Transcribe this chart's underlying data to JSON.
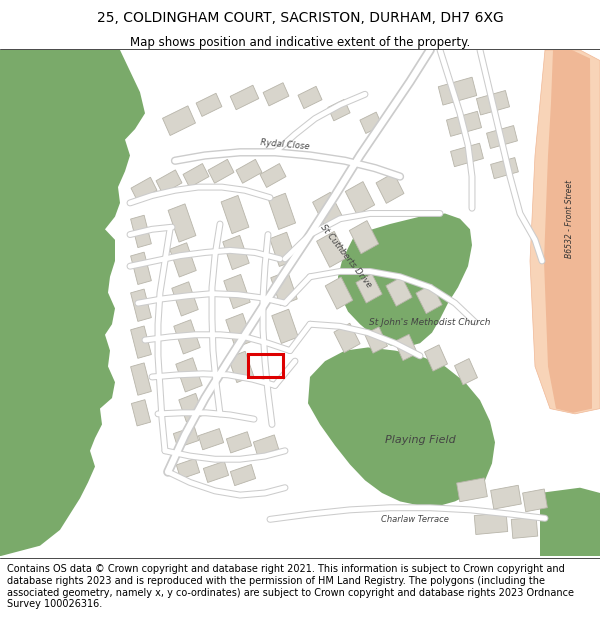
{
  "title_line1": "25, COLDINGHAM COURT, SACRISTON, DURHAM, DH7 6XG",
  "title_line2": "Map shows position and indicative extent of the property.",
  "footer_text": "Contains OS data © Crown copyright and database right 2021. This information is subject to Crown copyright and database rights 2023 and is reproduced with the permission of HM Land Registry. The polygons (including the associated geometry, namely x, y co-ordinates) are subject to Crown copyright and database rights 2023 Ordnance Survey 100026316.",
  "map_bg": "#f5f4f0",
  "white_bg": "#ffffff",
  "green_color": "#7aaa6a",
  "green_light": "#a8c89a",
  "road_orange": "#f0b896",
  "road_light_orange": "#f8d4b8",
  "building_color": "#d8d5cc",
  "building_outline": "#b8b5aa",
  "road_fill": "#ffffff",
  "road_edge": "#cccccc",
  "plot_color": "#dd0000",
  "title_fontsize": 10,
  "subtitle_fontsize": 8.5,
  "footer_fontsize": 7.0
}
